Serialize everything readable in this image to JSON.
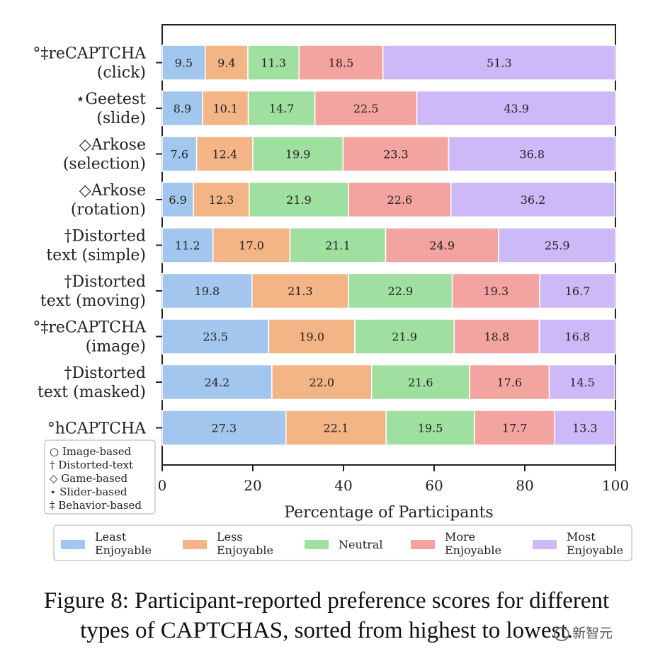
{
  "chart_data": {
    "type": "bar",
    "orientation": "horizontal",
    "stacked": true,
    "categories": [
      [
        "°‡reCAPTCHA",
        "(click)"
      ],
      [
        "⋆Geetest",
        "(slide)"
      ],
      [
        "◇Arkose",
        "(selection)"
      ],
      [
        "◇Arkose",
        "(rotation)"
      ],
      [
        "†Distorted",
        "text (simple)"
      ],
      [
        "†Distorted",
        "text (moving)"
      ],
      [
        "°‡reCAPTCHA",
        "(image)"
      ],
      [
        "†Distorted",
        "text (masked)"
      ],
      [
        "°hCAPTCHA"
      ]
    ],
    "series": [
      {
        "name": "Least Enjoyable",
        "label_lines": [
          "Least",
          "Enjoyable"
        ],
        "color": "#a3c6ee",
        "values": [
          9.5,
          8.9,
          7.6,
          6.9,
          11.2,
          19.8,
          23.5,
          24.2,
          27.3
        ]
      },
      {
        "name": "Less Enjoyable",
        "label_lines": [
          "Less",
          "Enjoyable"
        ],
        "color": "#f3b486",
        "values": [
          9.4,
          10.1,
          12.4,
          12.3,
          17.0,
          21.3,
          19.0,
          22.0,
          22.1
        ]
      },
      {
        "name": "Neutral",
        "label_lines": [
          "Neutral"
        ],
        "color": "#9fe0a1",
        "values": [
          11.3,
          14.7,
          19.9,
          21.9,
          21.1,
          22.9,
          21.9,
          21.6,
          19.5
        ]
      },
      {
        "name": "More Enjoyable",
        "label_lines": [
          "More",
          "Enjoyable"
        ],
        "color": "#f3a3a0",
        "values": [
          18.5,
          22.5,
          23.3,
          22.6,
          24.9,
          19.3,
          18.8,
          17.6,
          17.7
        ]
      },
      {
        "name": "Most Enjoyable",
        "label_lines": [
          "Most",
          "Enjoyable"
        ],
        "color": "#cdb9f7",
        "values": [
          51.3,
          43.9,
          36.8,
          36.2,
          25.9,
          16.7,
          16.8,
          14.5,
          13.3
        ]
      }
    ],
    "xlabel": "Percentage of Participants",
    "xlim": [
      0,
      100
    ],
    "xticks": [
      0,
      20,
      40,
      60,
      80,
      100
    ],
    "grid": false,
    "legend_position": "below",
    "symbol_legend": [
      "○ Image-based",
      "† Distorted-text",
      "◇ Game-based",
      "⋆ Slider-based",
      "‡ Behavior-based"
    ]
  },
  "caption": {
    "line1": "Figure 8: Participant-reported preference scores for different",
    "line2": "types of CAPTCHAS, sorted from highest to lowest."
  },
  "watermark": "新智元"
}
